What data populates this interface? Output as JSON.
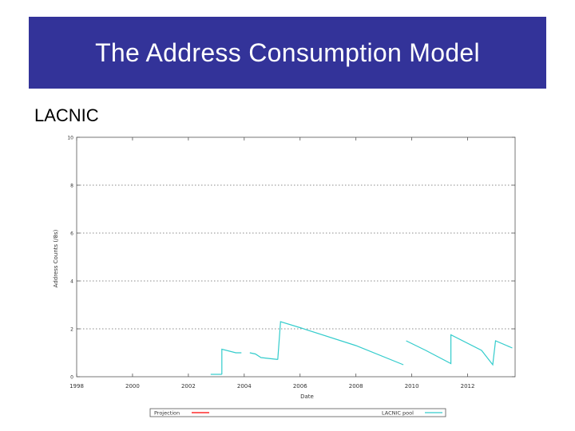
{
  "slide": {
    "title": "The Address Consumption Model",
    "subtitle": "LACNIC"
  },
  "chart_data": {
    "type": "line",
    "title": "",
    "xlabel": "Date",
    "ylabel": "Address Counts (/8s)",
    "xlim": [
      1998,
      2013.7
    ],
    "ylim": [
      0,
      10
    ],
    "xticks": [
      1998,
      2000,
      2002,
      2004,
      2006,
      2008,
      2010,
      2012
    ],
    "xtick_labels": [
      "1998",
      "2000",
      "2002",
      "2004",
      "2006",
      "2008",
      "2010",
      "2012"
    ],
    "yticks": [
      0,
      2,
      4,
      6,
      8,
      10
    ],
    "ytick_labels": [
      "0",
      "2",
      "4",
      "6",
      "8",
      "10"
    ],
    "grid": true,
    "legend": "bottom",
    "series": [
      {
        "name": "Projection",
        "color": "#ff0000",
        "segments": []
      },
      {
        "name": "LACNIC pool",
        "color": "#33cccc",
        "segments": [
          [
            [
              2002.8,
              0.1
            ],
            [
              2003.2,
              0.1
            ]
          ],
          [
            [
              2003.2,
              0.1
            ],
            [
              2003.2,
              1.15
            ],
            [
              2003.7,
              1.0
            ],
            [
              2003.9,
              1.0
            ]
          ],
          [
            [
              2004.2,
              1.0
            ],
            [
              2004.4,
              0.95
            ],
            [
              2004.6,
              0.8
            ],
            [
              2005.2,
              0.72
            ]
          ],
          [
            [
              2005.2,
              0.72
            ],
            [
              2005.3,
              2.3
            ],
            [
              2006.0,
              2.05
            ],
            [
              2008.0,
              1.3
            ],
            [
              2009.7,
              0.5
            ]
          ],
          [
            [
              2009.8,
              1.5
            ],
            [
              2010.5,
              1.1
            ],
            [
              2011.4,
              0.55
            ],
            [
              2011.4,
              1.75
            ],
            [
              2012.5,
              1.1
            ],
            [
              2012.9,
              0.5
            ],
            [
              2013.0,
              1.5
            ],
            [
              2013.6,
              1.2
            ]
          ]
        ]
      }
    ]
  }
}
